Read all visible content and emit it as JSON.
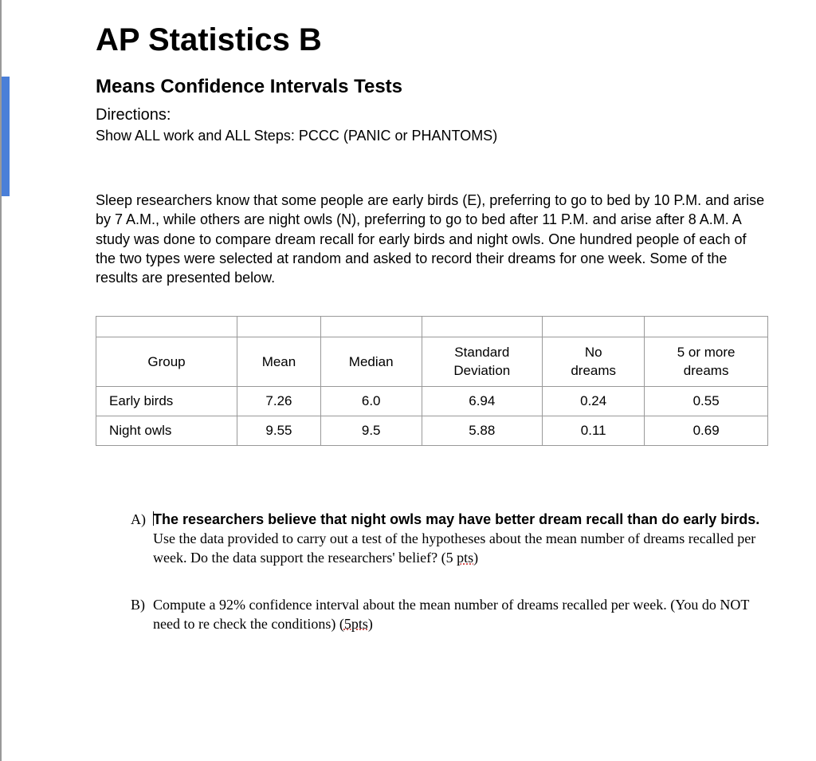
{
  "header": {
    "title": "AP Statistics B",
    "subtitle": "Means Confidence Intervals Tests",
    "directions_label": "Directions:",
    "directions_text": "Show ALL work and ALL Steps: PCCC (PANIC or PHANTOMS)"
  },
  "paragraph": "Sleep researchers know that some people are early birds (E), preferring to go to bed by 10 P.M. and arise by 7 A.M., while others are night owls (N), preferring to go to bed after 11 P.M. and arise after 8 A.M.  A study was done to compare dream recall for early birds and night owls.  One hundred people of each of the two types were selected at random and asked to record their dreams for one week.  Some of the results are presented below.",
  "table": {
    "columns": [
      "Group",
      "Mean",
      "Median",
      "Standard Deviation",
      "No dreams",
      "5 or more dreams"
    ],
    "rows": [
      {
        "label": "Early birds",
        "cells": [
          "7.26",
          "6.0",
          "6.94",
          "0.24",
          "0.55"
        ]
      },
      {
        "label": "Night owls",
        "cells": [
          "9.55",
          "9.5",
          "5.88",
          "0.11",
          "0.69"
        ]
      }
    ],
    "border_color": "#999999",
    "font_size": 17
  },
  "questions": {
    "a": {
      "letter": "A)",
      "bold_part": "The researchers believe that night owls may have better dream recall than do early birds.",
      "rest": " Use the data provided to carry out a test of the hypotheses about the mean number of dreams recalled per week. Do the data support the researchers' belief? (5 ",
      "squiggle": "pts",
      "end": ")"
    },
    "b": {
      "letter": "B)",
      "text_before": "Compute a 92% confidence interval about the mean number of dreams recalled per week. (You do NOT need to re check the conditions) (",
      "squiggle": "5pts",
      "end": ")"
    }
  },
  "colors": {
    "blue_tab": "#4a7fd8",
    "left_border": "#999999",
    "text": "#000000",
    "background": "#ffffff",
    "squiggle": "#d04040"
  }
}
